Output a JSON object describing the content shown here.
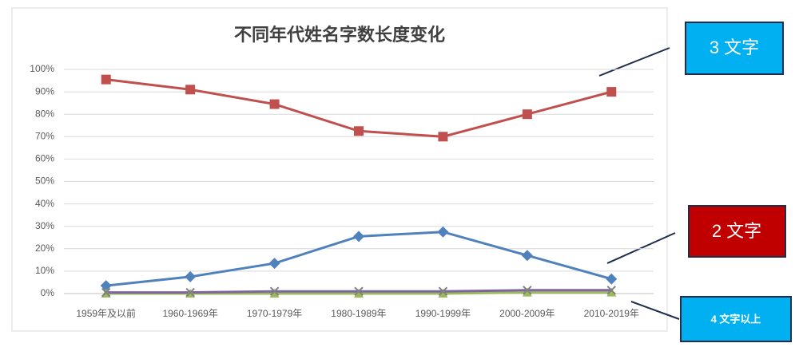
{
  "chart_data": {
    "type": "line",
    "title": "不同年代姓名字数长度变化",
    "categories": [
      "1959年及以前",
      "1960-1969年",
      "1970-1979年",
      "1980-1989年",
      "1990-1999年",
      "2000-2009年",
      "2010-2019年"
    ],
    "series": [
      {
        "name": "3 文字",
        "color": "#c0504d",
        "marker": "square",
        "values": [
          95.5,
          91,
          84.5,
          72.5,
          70,
          80,
          90
        ]
      },
      {
        "name": "2 文字",
        "color": "#4f81bd",
        "marker": "diamond",
        "values": [
          3.5,
          7.5,
          13.5,
          25.5,
          27.5,
          17,
          6.5
        ]
      },
      {
        "name": "4 文字以上",
        "color": "#9bbb59",
        "marker": "triangle",
        "values": [
          0,
          0,
          0,
          0,
          0,
          0.5,
          0.5
        ]
      },
      {
        "color": "#8064a2",
        "marker": "x",
        "values": [
          0.5,
          0.5,
          1,
          1,
          1,
          1.5,
          1.5
        ]
      }
    ],
    "ylim": [
      0,
      100
    ],
    "yticks": [
      {
        "value": 0,
        "label": "0%"
      },
      {
        "value": 10,
        "label": "10%"
      },
      {
        "value": 20,
        "label": "20%"
      },
      {
        "value": 30,
        "label": "30%"
      },
      {
        "value": 40,
        "label": "40%"
      },
      {
        "value": 50,
        "label": "50%"
      },
      {
        "value": 60,
        "label": "60%"
      },
      {
        "value": 70,
        "label": "70%"
      },
      {
        "value": 80,
        "label": "80%"
      },
      {
        "value": 90,
        "label": "90%"
      },
      {
        "value": 100,
        "label": "100%"
      }
    ],
    "grid": true
  }
}
